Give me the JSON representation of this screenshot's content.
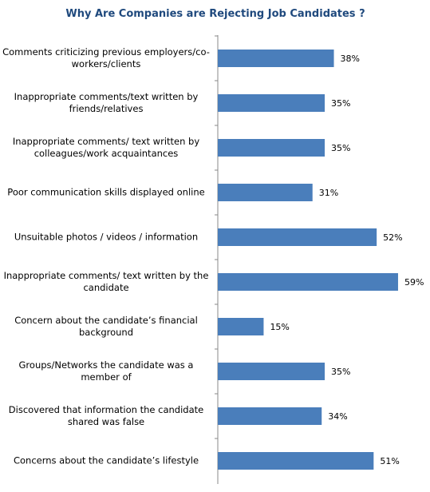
{
  "chart_data": {
    "type": "bar",
    "orientation": "horizontal",
    "title": "Why Are Companies are Rejecting Job Candidates ?",
    "categories": [
      "Comments criticizing previous employers/co-workers/clients",
      "Inappropriate comments/text written by friends/relatives",
      "Inappropriate comments/ text written by colleagues/work acquaintances",
      "Poor communication skills displayed online",
      "Unsuitable photos / videos / information",
      "Inappropriate comments/ text written by the candidate",
      "Concern about the candidate’s financial background",
      "Groups/Networks the candidate was a member of",
      "Discovered that information the candidate shared was false",
      "Concerns about the candidate’s lifestyle"
    ],
    "values": [
      38,
      35,
      35,
      31,
      52,
      59,
      15,
      35,
      34,
      51
    ],
    "value_labels": [
      "38%",
      "35%",
      "35%",
      "31%",
      "52%",
      "59%",
      "15%",
      "35%",
      "34%",
      "51%"
    ],
    "color": "#4a7ebb"
  }
}
